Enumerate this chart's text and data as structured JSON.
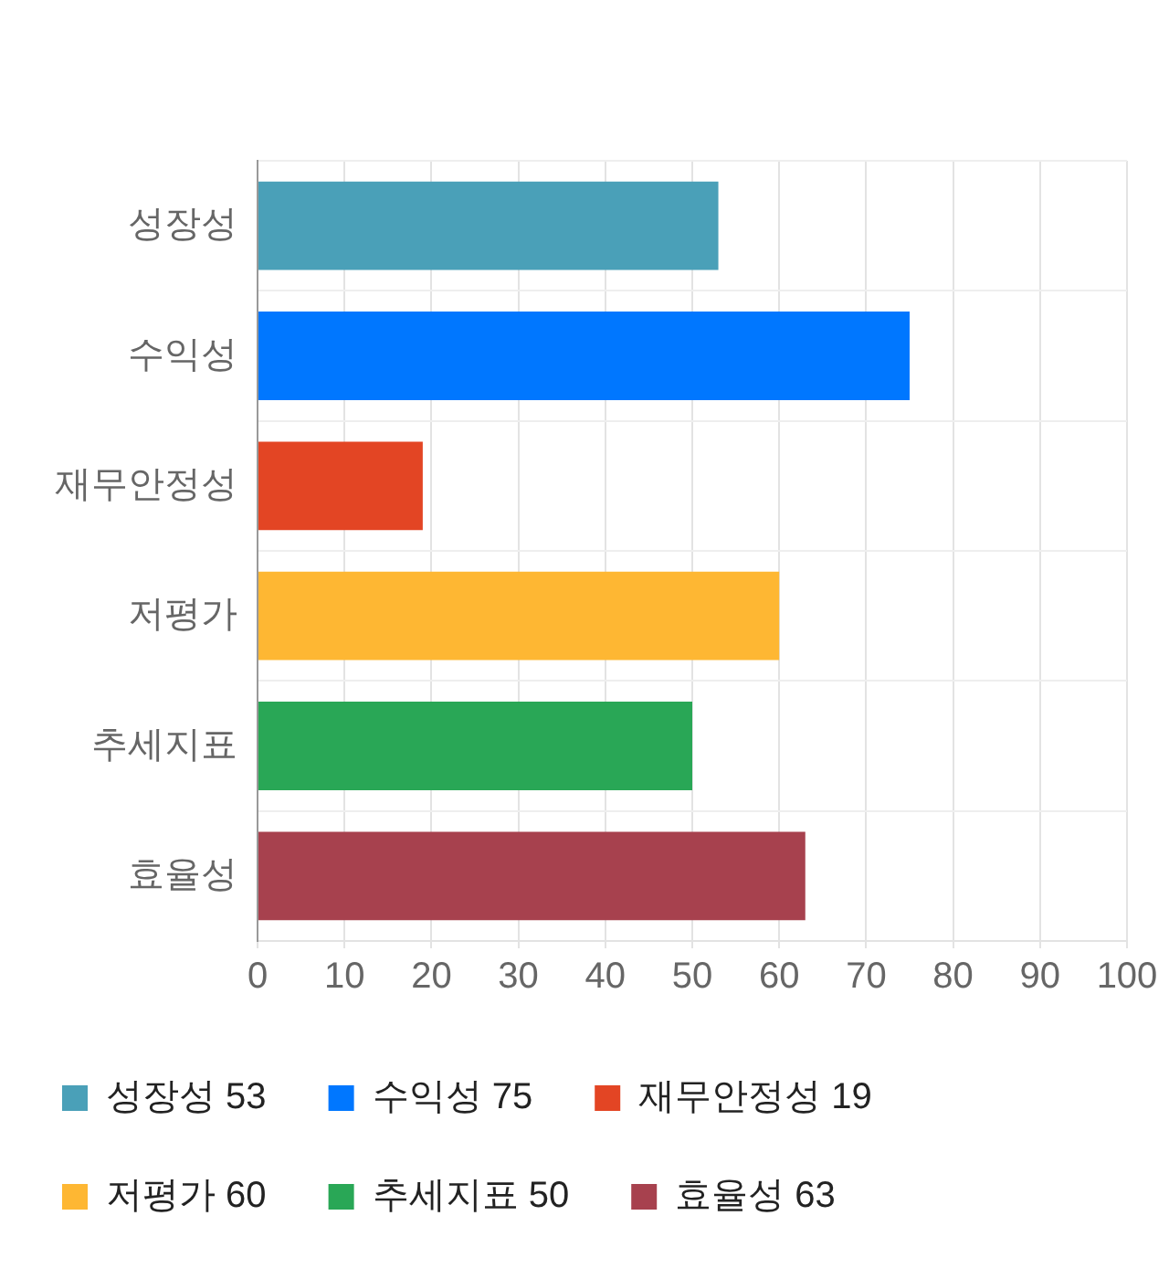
{
  "chart_data": {
    "type": "bar",
    "orientation": "horizontal",
    "stacked": true,
    "categories": [
      "성장성",
      "수익성",
      "재무안정성",
      "저평가",
      "추세지표",
      "효율성"
    ],
    "series": [
      {
        "name": "성장성 53",
        "color": "#4aa0b8",
        "values": [
          53,
          null,
          null,
          null,
          null,
          null
        ]
      },
      {
        "name": "수익성 75",
        "color": "#0077ff",
        "values": [
          null,
          75,
          null,
          null,
          null,
          null
        ]
      },
      {
        "name": "재무안정성 19",
        "color": "#e34524",
        "values": [
          null,
          null,
          19,
          null,
          null,
          null
        ]
      },
      {
        "name": "저평가 60",
        "color": "#feb733",
        "values": [
          null,
          null,
          null,
          60,
          null,
          null
        ]
      },
      {
        "name": "추세지표 50",
        "color": "#29a756",
        "values": [
          null,
          null,
          null,
          null,
          50,
          null
        ]
      },
      {
        "name": "효율성 63",
        "color": "#a7414e",
        "values": [
          null,
          null,
          null,
          null,
          null,
          63
        ]
      }
    ],
    "xlim": [
      0,
      100
    ],
    "xticks": [
      0,
      10,
      20,
      30,
      40,
      50,
      60,
      70,
      80,
      90,
      100
    ],
    "grid": true,
    "legend": "bottom"
  }
}
